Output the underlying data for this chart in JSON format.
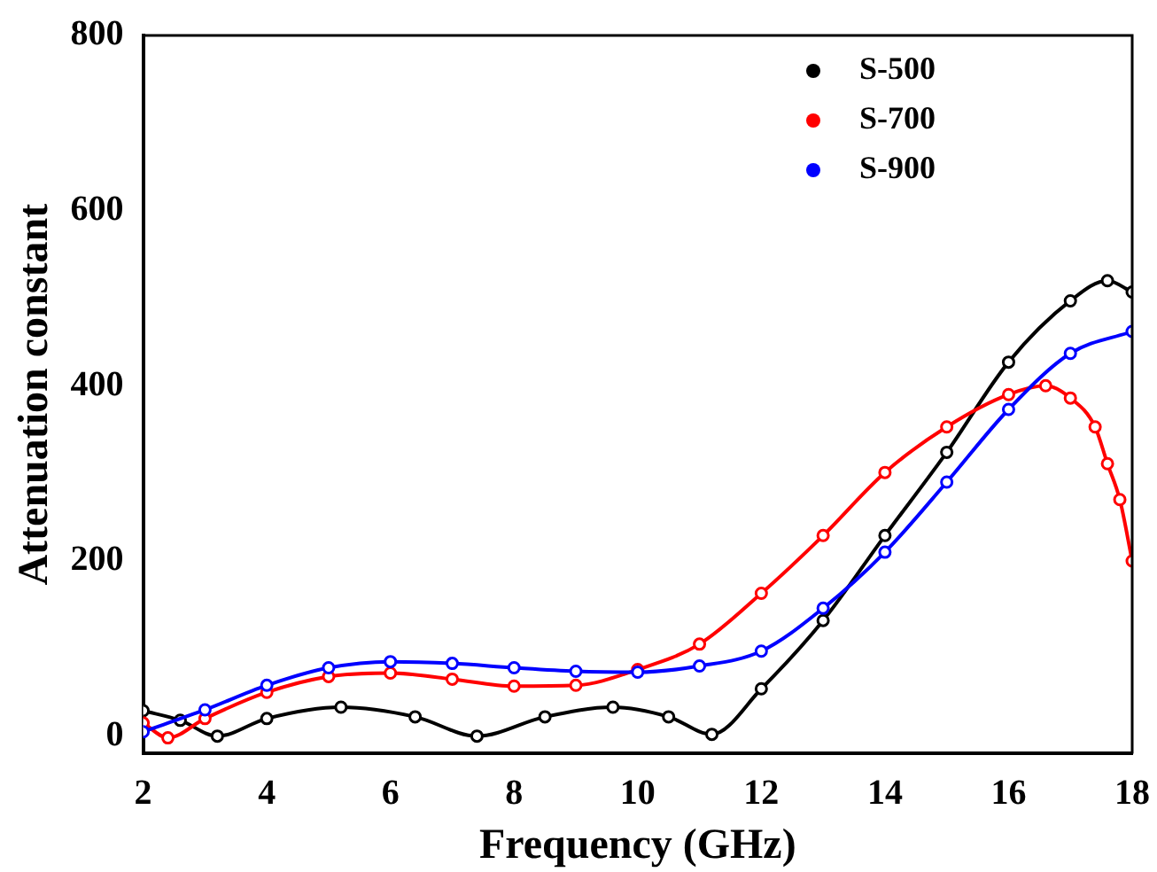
{
  "chart_data": {
    "type": "line",
    "xlabel": "Frequency (GHz)",
    "ylabel": "Attenuation constant",
    "xlim": [
      2,
      18
    ],
    "xticks": [
      2,
      4,
      6,
      8,
      10,
      12,
      14,
      16,
      18
    ],
    "ylim": [
      -20,
      800
    ],
    "yticks": [
      0,
      200,
      400,
      600,
      800
    ],
    "grid": false,
    "legend": "top right",
    "marker": "circle",
    "line_style": "solid",
    "series": [
      {
        "name": "S-500",
        "color": "#000000",
        "x": [
          2,
          2.6,
          3.2,
          4,
          5.2,
          6.4,
          7.4,
          8.5,
          9.6,
          10.5,
          11.2,
          12,
          13,
          14,
          15,
          16,
          17,
          17.6,
          18
        ],
        "values": [
          29,
          18,
          0,
          20,
          33,
          22,
          0,
          22,
          33,
          22,
          2,
          54,
          132,
          229,
          324,
          427,
          497,
          520,
          507
        ]
      },
      {
        "name": "S-700",
        "color": "#ff0000",
        "x": [
          2,
          2.4,
          3,
          4,
          5,
          6,
          7,
          8,
          9,
          10,
          11,
          12,
          13,
          14,
          15,
          16,
          16.6,
          17,
          17.4,
          17.6,
          17.8,
          18
        ],
        "values": [
          15,
          -2,
          20,
          50,
          68,
          72,
          65,
          57,
          58,
          76,
          105,
          163,
          229,
          301,
          353,
          390,
          400,
          386,
          353,
          311,
          270,
          200
        ]
      },
      {
        "name": "S-900",
        "color": "#0000ff",
        "x": [
          2,
          3,
          4,
          5,
          6,
          7,
          8,
          9,
          10,
          11,
          12,
          13,
          14,
          15,
          16,
          17,
          18
        ],
        "values": [
          5,
          30,
          58,
          78,
          85,
          83,
          78,
          74,
          73,
          80,
          97,
          146,
          210,
          290,
          373,
          437,
          462
        ]
      }
    ]
  }
}
